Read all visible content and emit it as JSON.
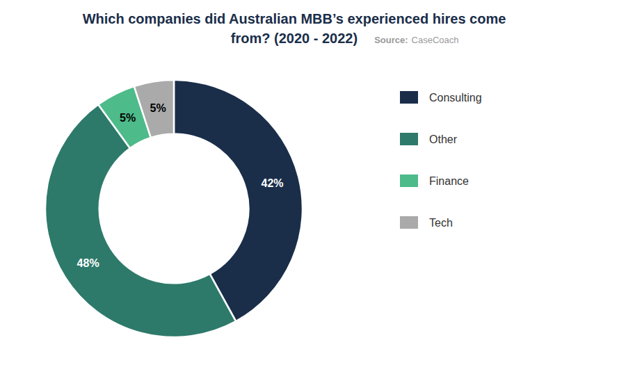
{
  "chart_data": {
    "type": "pie",
    "title": [
      "Which companies did Australian MBB’s experienced hires come",
      "from?   (2020 - 2022)"
    ],
    "annotations": [
      "Source:",
      "CaseCoach"
    ],
    "categories": [
      "Consulting",
      "Other",
      "Finance",
      "Tech"
    ],
    "values": [
      42,
      48,
      5,
      5
    ],
    "value_labels": [
      "42%",
      "48%",
      "5%",
      "5%"
    ],
    "colors": [
      "#1a2e4a",
      "#2d7a6a",
      "#4dbb8a",
      "#aaaaaa"
    ],
    "data_labels": true,
    "legend": "right"
  }
}
